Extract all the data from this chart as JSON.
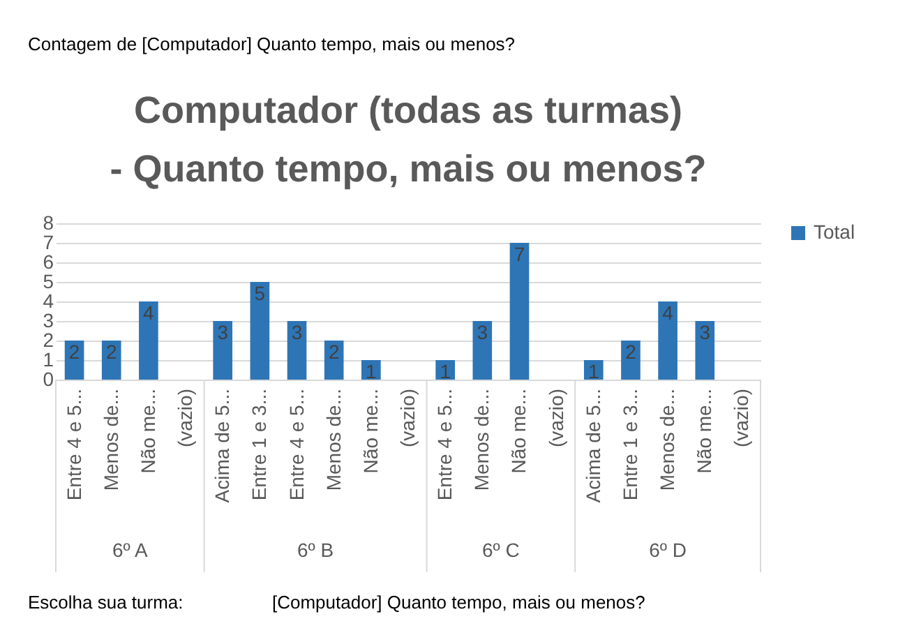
{
  "chart_data": {
    "type": "bar",
    "title": "Computador (todas as turmas) - Quanto tempo, mais ou menos?",
    "categories": [
      "Entre 4 e 5...",
      "Menos de...",
      "Não me...",
      "(vazio)",
      "Acima de 5...",
      "Entre 1 e 3...",
      "Entre 4 e 5...",
      "Menos de...",
      "Não me...",
      "(vazio)",
      "Entre 4 e 5...",
      "Menos de...",
      "Não me...",
      "(vazio)",
      "Acima de 5...",
      "Entre 1 e 3...",
      "Menos de...",
      "Não me...",
      "(vazio)"
    ],
    "series": [
      {
        "name": "Total",
        "color": "#2e75b6",
        "values": [
          2,
          2,
          4,
          null,
          3,
          5,
          3,
          2,
          1,
          null,
          1,
          3,
          7,
          null,
          1,
          2,
          4,
          3,
          null
        ]
      }
    ],
    "ylim": [
      0,
      8
    ],
    "yticks": [
      0,
      1,
      2,
      3,
      4,
      5,
      6,
      7,
      8
    ],
    "grid": "y",
    "legend": "right",
    "data_labels": true,
    "annotations": [
      "Contagem de [Computador] Quanto tempo, mais ou menos?",
      "6º A",
      "6º B",
      "6º C",
      "6º D",
      "Escolha sua turma:",
      "[Computador] Quanto tempo, mais ou menos?"
    ]
  }
}
